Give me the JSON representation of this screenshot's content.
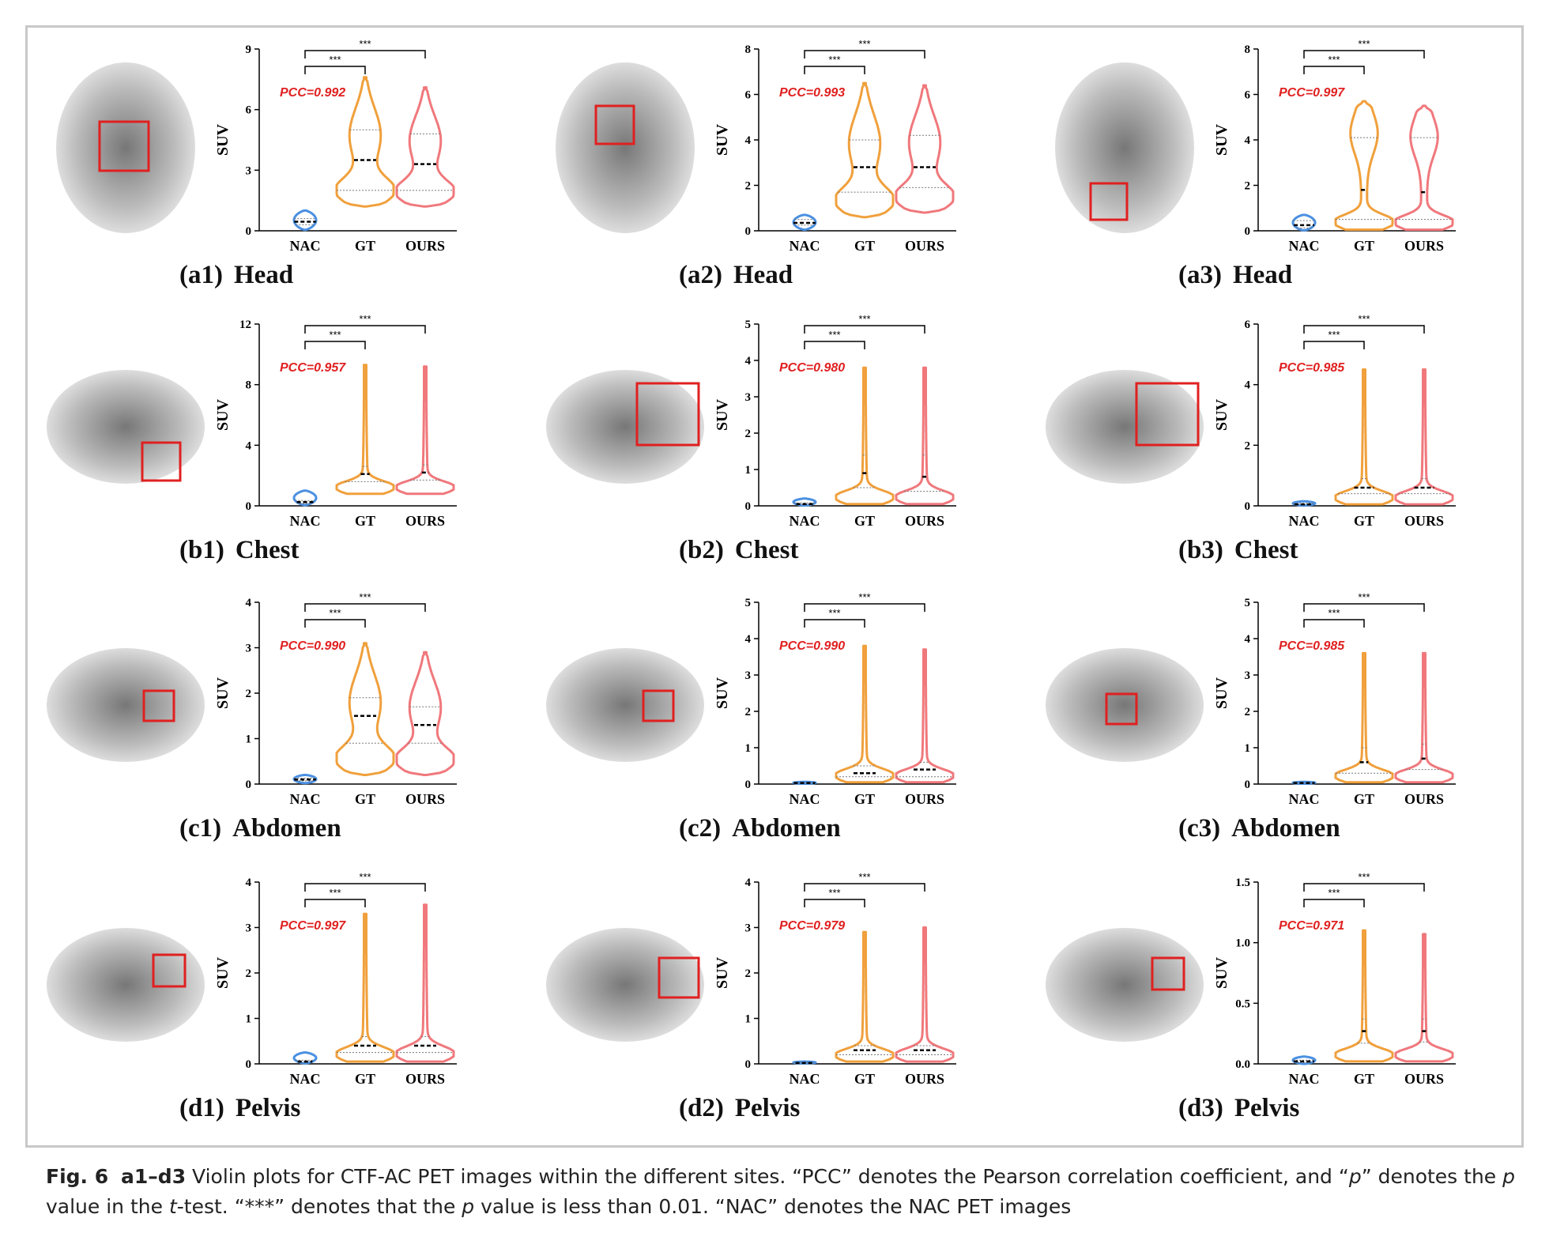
{
  "caption": {
    "figure_label": "Fig. 6",
    "panel_range": "a1–d3",
    "text_1": " Violin plots for CTF-AC PET images within the different sites. “PCC” denotes the Pearson correlation coefficient, and “",
    "p1": "p",
    "text_2": "” denotes the ",
    "p2": "p",
    "text_3": " value in the ",
    "t": "t",
    "text_4": "-test. “***” denotes that the ",
    "p3": "p",
    "text_5": " value is less than 0.01. “NAC” denotes the NAC PET images"
  },
  "colors": {
    "NAC": "#4a90e2",
    "GT": "#f0a03c",
    "OURS": "#f0787c",
    "pcc": "#e02020",
    "roi_box": "#e02020"
  },
  "chart_data": [
    {
      "id": "a1",
      "label": "(a1)",
      "site": "Head",
      "type": "violin",
      "ylabel": "SUV",
      "yticks": [
        "0",
        "3",
        "6",
        "9"
      ],
      "ylim": [
        0,
        9
      ],
      "categories": [
        "NAC",
        "GT",
        "OURS"
      ],
      "pcc": "PCC=0.992",
      "sig": "***",
      "series": [
        {
          "name": "NAC",
          "min": 0.05,
          "max": 1.0,
          "median": 0.45,
          "q1": 0.3,
          "q3": 0.6,
          "shape": "narrow"
        },
        {
          "name": "GT",
          "min": 1.2,
          "max": 7.6,
          "median": 3.5,
          "q1": 2.0,
          "q3": 5.0,
          "shape": "broad"
        },
        {
          "name": "OURS",
          "min": 1.2,
          "max": 7.1,
          "median": 3.3,
          "q1": 2.0,
          "q3": 4.8,
          "shape": "broad"
        }
      ]
    },
    {
      "id": "a2",
      "label": "(a2)",
      "site": "Head",
      "type": "violin",
      "ylabel": "SUV",
      "yticks": [
        "0",
        "2",
        "4",
        "6",
        "8"
      ],
      "ylim": [
        0,
        8
      ],
      "categories": [
        "NAC",
        "GT",
        "OURS"
      ],
      "pcc": "PCC=0.993",
      "sig": "***",
      "series": [
        {
          "name": "NAC",
          "min": 0.05,
          "max": 0.7,
          "median": 0.35,
          "q1": 0.25,
          "q3": 0.5,
          "shape": "narrow"
        },
        {
          "name": "GT",
          "min": 0.6,
          "max": 6.5,
          "median": 2.8,
          "q1": 1.7,
          "q3": 4.0,
          "shape": "broad"
        },
        {
          "name": "OURS",
          "min": 0.8,
          "max": 6.4,
          "median": 2.8,
          "q1": 1.9,
          "q3": 4.2,
          "shape": "broad"
        }
      ]
    },
    {
      "id": "a3",
      "label": "(a3)",
      "site": "Head",
      "type": "violin",
      "ylabel": "SUV",
      "yticks": [
        "0",
        "2",
        "4",
        "6",
        "8"
      ],
      "ylim": [
        0,
        8
      ],
      "categories": [
        "NAC",
        "GT",
        "OURS"
      ],
      "pcc": "PCC=0.997",
      "sig": "***",
      "series": [
        {
          "name": "NAC",
          "min": 0.02,
          "max": 0.7,
          "median": 0.25,
          "q1": 0.12,
          "q3": 0.45,
          "shape": "narrow"
        },
        {
          "name": "GT",
          "min": 0.05,
          "max": 5.7,
          "median": 1.8,
          "q1": 0.5,
          "q3": 4.1,
          "shape": "bottom"
        },
        {
          "name": "OURS",
          "min": 0.05,
          "max": 5.5,
          "median": 1.7,
          "q1": 0.5,
          "q3": 4.1,
          "shape": "bottom"
        }
      ]
    },
    {
      "id": "b1",
      "label": "(b1)",
      "site": "Chest",
      "type": "violin",
      "ylabel": "SUV",
      "yticks": [
        "0",
        "4",
        "8",
        "12"
      ],
      "ylim": [
        0,
        12
      ],
      "categories": [
        "NAC",
        "GT",
        "OURS"
      ],
      "pcc": "PCC=0.957",
      "sig": "***",
      "series": [
        {
          "name": "NAC",
          "min": 0.05,
          "max": 1.0,
          "median": 0.25,
          "q1": 0.15,
          "q3": 0.35,
          "shape": "narrow"
        },
        {
          "name": "GT",
          "min": 0.8,
          "max": 9.3,
          "median": 2.1,
          "q1": 1.6,
          "q3": 2.6,
          "shape": "long"
        },
        {
          "name": "OURS",
          "min": 0.8,
          "max": 9.2,
          "median": 2.2,
          "q1": 1.7,
          "q3": 2.7,
          "shape": "long"
        }
      ]
    },
    {
      "id": "b2",
      "label": "(b2)",
      "site": "Chest",
      "type": "violin",
      "ylabel": "SUV",
      "yticks": [
        "0",
        "1",
        "2",
        "3",
        "4",
        "5"
      ],
      "ylim": [
        0,
        5
      ],
      "categories": [
        "NAC",
        "GT",
        "OURS"
      ],
      "pcc": "PCC=0.980",
      "sig": "***",
      "series": [
        {
          "name": "NAC",
          "min": 0.01,
          "max": 0.2,
          "median": 0.05,
          "q1": 0.03,
          "q3": 0.08,
          "shape": "narrow"
        },
        {
          "name": "GT",
          "min": 0.05,
          "max": 3.8,
          "median": 0.9,
          "q1": 0.5,
          "q3": 1.4,
          "shape": "long"
        },
        {
          "name": "OURS",
          "min": 0.05,
          "max": 3.8,
          "median": 0.8,
          "q1": 0.4,
          "q3": 1.4,
          "shape": "long"
        }
      ]
    },
    {
      "id": "b3",
      "label": "(b3)",
      "site": "Chest",
      "type": "violin",
      "ylabel": "SUV",
      "yticks": [
        "0",
        "2",
        "4",
        "6"
      ],
      "ylim": [
        0,
        6
      ],
      "categories": [
        "NAC",
        "GT",
        "OURS"
      ],
      "pcc": "PCC=0.985",
      "sig": "***",
      "series": [
        {
          "name": "NAC",
          "min": 0.01,
          "max": 0.15,
          "median": 0.05,
          "q1": 0.03,
          "q3": 0.08,
          "shape": "narrow"
        },
        {
          "name": "GT",
          "min": 0.05,
          "max": 4.5,
          "median": 0.6,
          "q1": 0.4,
          "q3": 0.9,
          "shape": "long"
        },
        {
          "name": "OURS",
          "min": 0.05,
          "max": 4.5,
          "median": 0.6,
          "q1": 0.4,
          "q3": 0.9,
          "shape": "long"
        }
      ]
    },
    {
      "id": "c1",
      "label": "(c1)",
      "site": "Abdomen",
      "type": "violin",
      "ylabel": "SUV",
      "yticks": [
        "0",
        "1",
        "2",
        "3",
        "4"
      ],
      "ylim": [
        0,
        4
      ],
      "categories": [
        "NAC",
        "GT",
        "OURS"
      ],
      "pcc": "PCC=0.990",
      "sig": "***",
      "series": [
        {
          "name": "NAC",
          "min": 0.02,
          "max": 0.2,
          "median": 0.1,
          "q1": 0.07,
          "q3": 0.13,
          "shape": "narrow"
        },
        {
          "name": "GT",
          "min": 0.2,
          "max": 3.1,
          "median": 1.5,
          "q1": 0.9,
          "q3": 1.9,
          "shape": "broad"
        },
        {
          "name": "OURS",
          "min": 0.2,
          "max": 2.9,
          "median": 1.3,
          "q1": 0.9,
          "q3": 1.7,
          "shape": "broad"
        }
      ]
    },
    {
      "id": "c2",
      "label": "(c2)",
      "site": "Abdomen",
      "type": "violin",
      "ylabel": "SUV",
      "yticks": [
        "0",
        "1",
        "2",
        "3",
        "4",
        "5"
      ],
      "ylim": [
        0,
        5
      ],
      "categories": [
        "NAC",
        "GT",
        "OURS"
      ],
      "pcc": "PCC=0.990",
      "sig": "***",
      "series": [
        {
          "name": "NAC",
          "min": 0.01,
          "max": 0.06,
          "median": 0.03,
          "q1": 0.02,
          "q3": 0.04,
          "shape": "narrow"
        },
        {
          "name": "GT",
          "min": 0.05,
          "max": 3.8,
          "median": 0.3,
          "q1": 0.2,
          "q3": 0.5,
          "shape": "long"
        },
        {
          "name": "OURS",
          "min": 0.05,
          "max": 3.7,
          "median": 0.4,
          "q1": 0.2,
          "q3": 0.6,
          "shape": "long"
        }
      ]
    },
    {
      "id": "c3",
      "label": "(c3)",
      "site": "Abdomen",
      "type": "violin",
      "ylabel": "SUV",
      "yticks": [
        "0",
        "1",
        "2",
        "3",
        "4",
        "5"
      ],
      "ylim": [
        0,
        5
      ],
      "categories": [
        "NAC",
        "GT",
        "OURS"
      ],
      "pcc": "PCC=0.985",
      "sig": "***",
      "series": [
        {
          "name": "NAC",
          "min": 0.01,
          "max": 0.06,
          "median": 0.03,
          "q1": 0.02,
          "q3": 0.04,
          "shape": "narrow"
        },
        {
          "name": "GT",
          "min": 0.05,
          "max": 3.6,
          "median": 0.6,
          "q1": 0.3,
          "q3": 1.0,
          "shape": "long"
        },
        {
          "name": "OURS",
          "min": 0.05,
          "max": 3.6,
          "median": 0.7,
          "q1": 0.4,
          "q3": 1.1,
          "shape": "long"
        }
      ]
    },
    {
      "id": "d1",
      "label": "(d1)",
      "site": "Pelvis",
      "type": "violin",
      "ylabel": "SUV",
      "yticks": [
        "0",
        "1",
        "2",
        "3",
        "4"
      ],
      "ylim": [
        0,
        4
      ],
      "categories": [
        "NAC",
        "GT",
        "OURS"
      ],
      "pcc": "PCC=0.997",
      "sig": "***",
      "series": [
        {
          "name": "NAC",
          "min": 0.01,
          "max": 0.25,
          "median": 0.05,
          "q1": 0.03,
          "q3": 0.08,
          "shape": "narrow"
        },
        {
          "name": "GT",
          "min": 0.05,
          "max": 3.3,
          "median": 0.4,
          "q1": 0.25,
          "q3": 0.6,
          "shape": "long"
        },
        {
          "name": "OURS",
          "min": 0.05,
          "max": 3.5,
          "median": 0.4,
          "q1": 0.25,
          "q3": 0.6,
          "shape": "long"
        }
      ]
    },
    {
      "id": "d2",
      "label": "(d2)",
      "site": "Pelvis",
      "type": "violin",
      "ylabel": "SUV",
      "yticks": [
        "0",
        "1",
        "2",
        "3",
        "4"
      ],
      "ylim": [
        0,
        4
      ],
      "categories": [
        "NAC",
        "GT",
        "OURS"
      ],
      "pcc": "PCC=0.979",
      "sig": "***",
      "series": [
        {
          "name": "NAC",
          "min": 0.01,
          "max": 0.05,
          "median": 0.02,
          "q1": 0.01,
          "q3": 0.03,
          "shape": "narrow"
        },
        {
          "name": "GT",
          "min": 0.05,
          "max": 2.9,
          "median": 0.3,
          "q1": 0.2,
          "q3": 0.4,
          "shape": "long"
        },
        {
          "name": "OURS",
          "min": 0.05,
          "max": 3.0,
          "median": 0.3,
          "q1": 0.2,
          "q3": 0.4,
          "shape": "long"
        }
      ]
    },
    {
      "id": "d3",
      "label": "(d3)",
      "site": "Pelvis",
      "type": "violin",
      "ylabel": "SUV",
      "yticks": [
        "0.0",
        "0.5",
        "1.0",
        "1.5"
      ],
      "ylim": [
        0,
        1.5
      ],
      "categories": [
        "NAC",
        "GT",
        "OURS"
      ],
      "pcc": "PCC=0.971",
      "sig": "***",
      "series": [
        {
          "name": "NAC",
          "min": 0.0,
          "max": 0.06,
          "median": 0.02,
          "q1": 0.01,
          "q3": 0.03,
          "shape": "narrow"
        },
        {
          "name": "GT",
          "min": 0.02,
          "max": 1.1,
          "median": 0.27,
          "q1": 0.17,
          "q3": 0.37,
          "shape": "long"
        },
        {
          "name": "OURS",
          "min": 0.02,
          "max": 1.07,
          "median": 0.27,
          "q1": 0.18,
          "q3": 0.37,
          "shape": "long"
        }
      ]
    }
  ]
}
